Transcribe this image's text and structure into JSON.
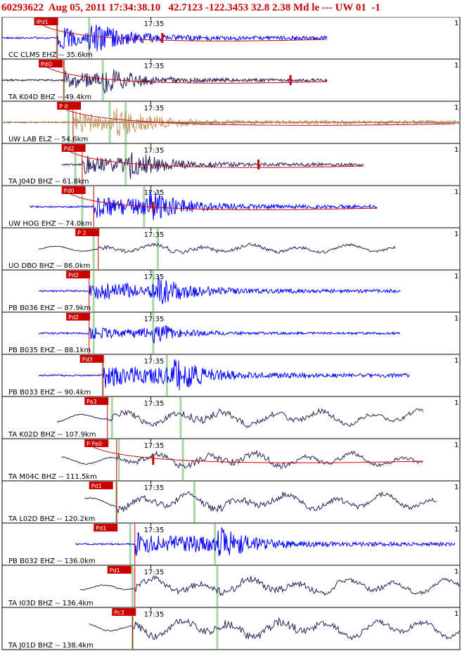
{
  "header": {
    "event_id": "60293622",
    "origin": "Aug 05, 2011 17:34:38.10",
    "location": "42.7123 -122.3453 32.8 2.38 Md le --- UW 01",
    "trailing": "-1"
  },
  "chart_data": {
    "type": "seismogram-section",
    "time_tick_label": "17:35",
    "right_edge_label": "1",
    "colors": {
      "frame": "#000000",
      "pick": "#cc0000",
      "green": "#a8d8a8",
      "blue": "#0000ff",
      "dark": "#2b1f5a",
      "tan": "#c8915a"
    },
    "traces": [
      {
        "label": "CC CLMS EHZ -- 35.6km",
        "pick_label": "IPd1",
        "color": "blue",
        "style": "hf",
        "amp": 0.95,
        "start": 0.0,
        "end": 0.71,
        "p": 0.12,
        "s": 0.19,
        "greens": [
          0.12,
          0.19
        ],
        "pick_box": 0.07,
        "moveout": true,
        "s_mark": 0.35
      },
      {
        "label": "TA K04D BHZ -- 49.4km",
        "pick_label": "PdO",
        "color": "dark",
        "style": "hf",
        "amp": 0.8,
        "start": 0.0,
        "end": 0.71,
        "p": 0.135,
        "s": 0.22,
        "greens": [
          0.135,
          0.22
        ],
        "pick_box": 0.08,
        "moveout": true,
        "s_mark": 0.63
      },
      {
        "label": "UW LAB ELZ -- 54.6km",
        "pick_label": "P 0",
        "color": "tan",
        "style": "hf",
        "amp": 1.0,
        "start": 0.0,
        "end": 1.0,
        "p": 0.155,
        "s": 0.24,
        "greens": [
          0.145,
          0.235,
          0.27
        ],
        "pick_box": 0.12,
        "moveout": true,
        "s_mark": -1
      },
      {
        "label": "TA J04D BHZ -- 61.8km",
        "pick_label": "Pd2",
        "color": "dark",
        "style": "hf",
        "amp": 0.8,
        "start": 0.13,
        "end": 0.79,
        "p": 0.175,
        "s": 0.28,
        "greens": [
          0.16,
          0.27
        ],
        "pick_box": 0.13,
        "moveout": true,
        "s_mark": 0.56
      },
      {
        "label": "UW HOG EHZ -- 74.0km",
        "pick_label": "Pd0",
        "color": "blue",
        "style": "hf",
        "amp": 0.95,
        "start": 0.06,
        "end": 0.82,
        "p": 0.2,
        "s": 0.32,
        "greens": [
          0.175,
          0.31
        ],
        "pick_box": 0.13,
        "moveout": true,
        "s_mark": 0.33
      },
      {
        "label": "UO DBO BHZ -- 86.0km",
        "pick_label": "P 2",
        "color": "dark",
        "style": "lp",
        "amp": 0.45,
        "start": 0.08,
        "end": 0.86,
        "p": 0.21,
        "s": 0.35,
        "greens": [
          0.2,
          0.34
        ],
        "pick_box": 0.16,
        "moveout": false,
        "s_mark": -1
      },
      {
        "label": "PB B036 EHZ -- 87.9km",
        "pick_label": "Pd2",
        "color": "blue",
        "style": "hf",
        "amp": 0.9,
        "start": 0.08,
        "end": 0.87,
        "p": 0.19,
        "s": 0.33,
        "greens": [
          0.2,
          0.33
        ],
        "pick_box": 0.14,
        "moveout": false,
        "s_mark": -1
      },
      {
        "label": "PB B035 EHZ -- 88.1km",
        "pick_label": "Pd2",
        "color": "blue",
        "style": "hf",
        "amp": 0.55,
        "start": 0.08,
        "end": 0.87,
        "p": 0.19,
        "s": 0.33,
        "greens": [
          0.2,
          0.33
        ],
        "pick_box": 0.14,
        "moveout": false,
        "s_mark": -1
      },
      {
        "label": "PB B033 EHZ -- 90.4km",
        "pick_label": "Pd3",
        "color": "blue",
        "style": "hf",
        "amp": 1.0,
        "start": 0.08,
        "end": 0.89,
        "p": 0.22,
        "s": 0.37,
        "greens": [
          0.22,
          0.36
        ],
        "pick_box": 0.17,
        "moveout": false,
        "s_mark": -1
      },
      {
        "label": "TA K02D BHZ -- 107.9km",
        "pick_label": "Pa3",
        "color": "dark",
        "style": "lp",
        "amp": 0.75,
        "start": 0.12,
        "end": 0.92,
        "p": 0.23,
        "s": 0.4,
        "greens": [
          0.24,
          0.39
        ],
        "pick_box": 0.18,
        "moveout": false,
        "s_mark": -1
      },
      {
        "label": "TA M04C BHZ -- 111.5km",
        "pick_label": "P Pe0",
        "color": "dark",
        "style": "lp",
        "amp": 0.7,
        "start": 0.13,
        "end": 0.92,
        "p": 0.25,
        "s": 0.41,
        "greens": [
          0.255,
          0.395
        ],
        "pick_box": 0.18,
        "moveout": true,
        "s_mark": 0.33
      },
      {
        "label": "TA L02D BHZ -- 120.2km",
        "pick_label": "Pd1",
        "color": "dark",
        "style": "lp",
        "amp": 0.8,
        "start": 0.18,
        "end": 0.95,
        "p": 0.25,
        "s": 0.43,
        "greens": [
          0.25,
          0.42
        ],
        "pick_box": 0.19,
        "moveout": false,
        "s_mark": -1
      },
      {
        "label": "PB B032 EHZ -- 136.0km",
        "pick_label": "Pd1",
        "color": "blue",
        "style": "hf",
        "amp": 0.95,
        "start": 0.16,
        "end": 0.99,
        "p": 0.29,
        "s": 0.47,
        "greens": [
          0.28,
          0.465
        ],
        "pick_box": 0.2,
        "moveout": false,
        "s_mark": -1
      },
      {
        "label": "TA I03D BHZ -- 136.4km",
        "pick_label": "Pd1",
        "color": "dark",
        "style": "lp",
        "amp": 0.8,
        "start": 0.17,
        "end": 1.0,
        "p": 0.29,
        "s": 0.47,
        "greens": [
          0.285,
          0.47
        ],
        "pick_box": 0.23,
        "moveout": false,
        "s_mark": -1
      },
      {
        "label": "TA J01D BHZ -- 138.4km",
        "pick_label": "Pc3",
        "color": "dark",
        "style": "lp",
        "amp": 0.9,
        "start": 0.19,
        "end": 1.0,
        "p": 0.285,
        "s": 0.48,
        "greens": [
          0.285,
          0.47
        ],
        "pick_box": 0.24,
        "moveout": false,
        "s_mark": -1
      }
    ]
  }
}
